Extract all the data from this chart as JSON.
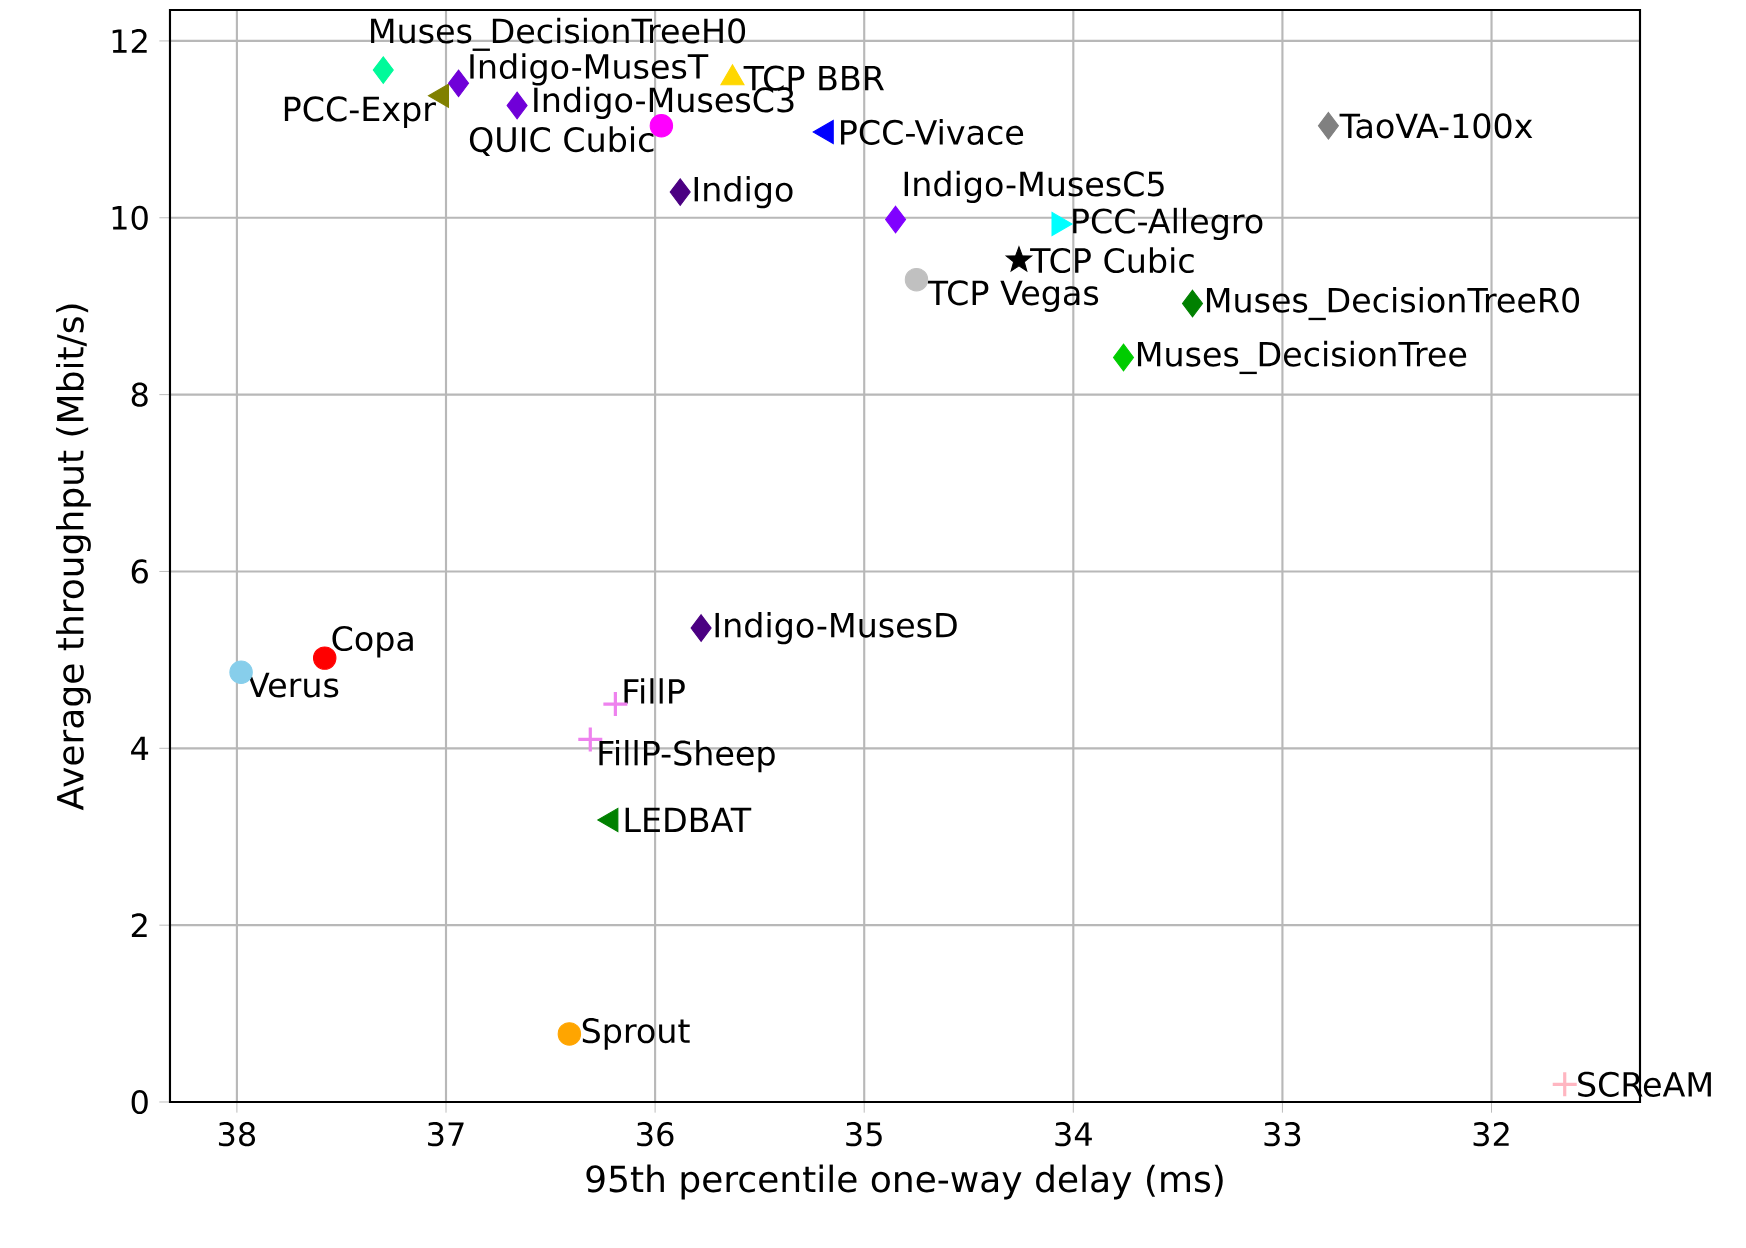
{
  "chart_data": {
    "type": "scatter",
    "xlabel": "95th percentile one-way delay (ms)",
    "ylabel": "Average throughput (Mbit/s)",
    "xlim": [
      38.32,
      31.29
    ],
    "ylim": [
      0,
      12.35
    ],
    "xticks": [
      38,
      37,
      36,
      35,
      34,
      33,
      32
    ],
    "yticks": [
      0,
      2,
      4,
      6,
      8,
      10,
      12
    ],
    "grid": true,
    "series": [
      {
        "name": "Muses_DecisionTreeH0",
        "color": "#00fa9a",
        "marker": "diamond",
        "x": [
          37.3
        ],
        "values": [
          11.67
        ]
      },
      {
        "name": "PCC-Expr",
        "color": "#808000",
        "marker": "triangle-left",
        "x": [
          37.02
        ],
        "values": [
          11.38
        ]
      },
      {
        "name": "Indigo-MusesT",
        "color": "#7000d8",
        "marker": "diamond",
        "x": [
          36.94
        ],
        "values": [
          11.52
        ]
      },
      {
        "name": "Indigo-MusesC3",
        "color": "#7000d8",
        "marker": "diamond",
        "x": [
          36.66
        ],
        "values": [
          11.27
        ]
      },
      {
        "name": "TCP BBR",
        "color": "#ffd700",
        "marker": "triangle",
        "x": [
          35.63
        ],
        "values": [
          11.58
        ]
      },
      {
        "name": "QUIC Cubic",
        "color": "#ff00ff",
        "marker": "circle",
        "x": [
          35.97
        ],
        "values": [
          11.04
        ]
      },
      {
        "name": "PCC-Vivace",
        "color": "#0000ff",
        "marker": "triangle-left",
        "x": [
          35.18
        ],
        "values": [
          10.97
        ]
      },
      {
        "name": "Indigo",
        "color": "#4b0082",
        "marker": "diamond",
        "x": [
          35.88
        ],
        "values": [
          10.29
        ]
      },
      {
        "name": "TaoVA-100x",
        "color": "#808080",
        "marker": "diamond",
        "x": [
          32.78
        ],
        "values": [
          11.04
        ]
      },
      {
        "name": "Indigo-MusesC5",
        "color": "#8000ff",
        "marker": "diamond",
        "x": [
          34.85
        ],
        "values": [
          9.98
        ]
      },
      {
        "name": "PCC-Allegro",
        "color": "#00ffff",
        "marker": "triangle-right",
        "x": [
          34.07
        ],
        "values": [
          9.93
        ]
      },
      {
        "name": "TCP Cubic",
        "color": "#000000",
        "marker": "star",
        "x": [
          34.26
        ],
        "values": [
          9.52
        ]
      },
      {
        "name": "TCP Vegas",
        "color": "#c0c0c0",
        "marker": "circle",
        "x": [
          34.75
        ],
        "values": [
          9.3
        ]
      },
      {
        "name": "Muses_DecisionTreeR0",
        "color": "#008000",
        "marker": "diamond",
        "x": [
          33.43
        ],
        "values": [
          9.03
        ]
      },
      {
        "name": "Muses_DecisionTree",
        "color": "#00cc00",
        "marker": "diamond",
        "x": [
          33.76
        ],
        "values": [
          8.42
        ]
      },
      {
        "name": "Verus",
        "color": "#87ceeb",
        "marker": "circle",
        "x": [
          37.98
        ],
        "values": [
          4.86
        ]
      },
      {
        "name": "Copa",
        "color": "#ff0000",
        "marker": "circle",
        "x": [
          37.58
        ],
        "values": [
          5.02
        ]
      },
      {
        "name": "Indigo-MusesD",
        "color": "#4b0082",
        "marker": "diamond",
        "x": [
          35.78
        ],
        "values": [
          5.36
        ]
      },
      {
        "name": "FillP",
        "color": "#ee82ee",
        "marker": "plus",
        "x": [
          36.19
        ],
        "values": [
          4.5
        ]
      },
      {
        "name": "FillP-Sheep",
        "color": "#ee82ee",
        "marker": "plus",
        "x": [
          36.31
        ],
        "values": [
          4.1
        ]
      },
      {
        "name": "LEDBAT",
        "color": "#008000",
        "marker": "triangle-left",
        "x": [
          36.21
        ],
        "values": [
          3.19
        ]
      },
      {
        "name": "Sprout",
        "color": "#ffa500",
        "marker": "circle",
        "x": [
          36.41
        ],
        "values": [
          0.77
        ]
      },
      {
        "name": "SCReAM",
        "color": "#ffb6c1",
        "marker": "plus",
        "x": [
          31.65
        ],
        "values": [
          0.2
        ]
      }
    ]
  }
}
